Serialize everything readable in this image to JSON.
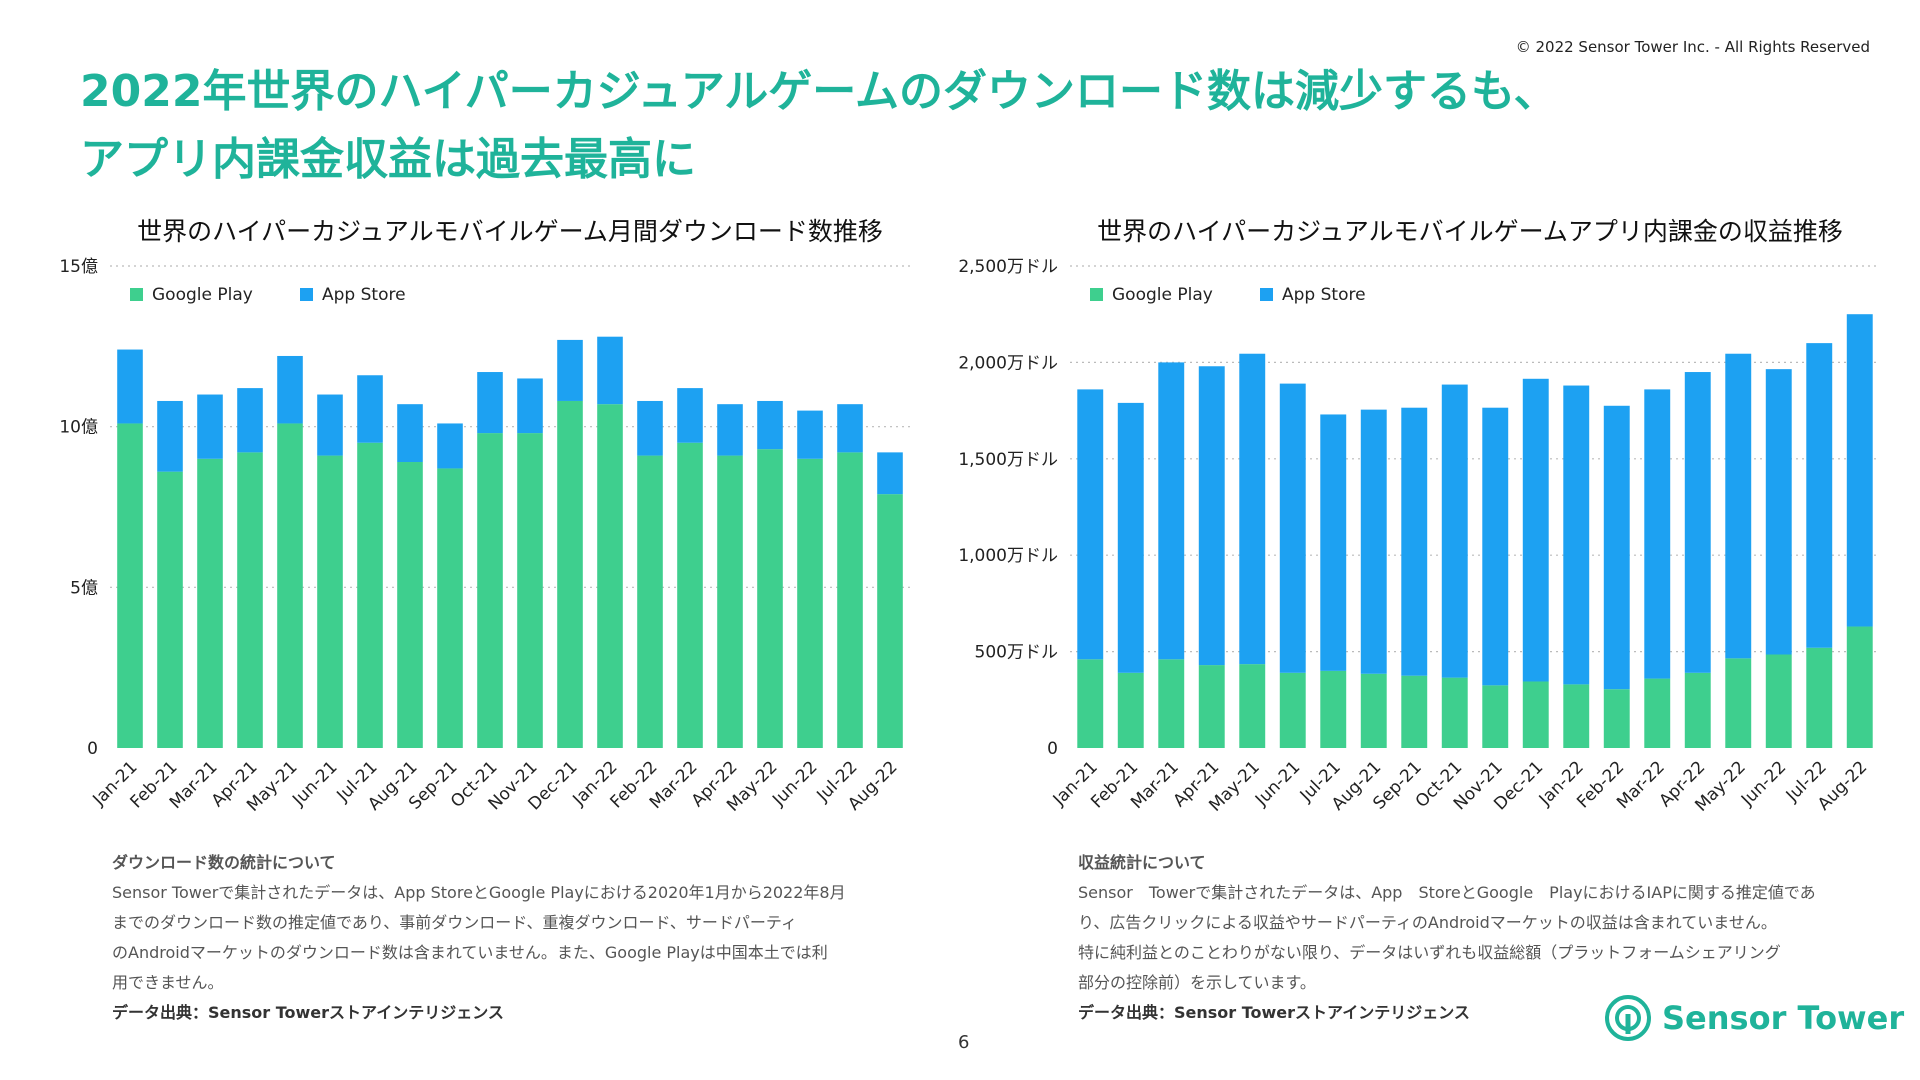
{
  "copyright": "© 2022 Sensor Tower Inc. - All Rights Reserved",
  "headline": {
    "line1": "2022年世界のハイパーカジュアルゲームのダウンロード数は減少するも、",
    "line2": "アプリ内課金収益は過去最高に"
  },
  "colors": {
    "google_play": "#3ecf8e",
    "app_store": "#1da1f2",
    "accent": "#1fb39a",
    "grid": "#bbbbbb"
  },
  "chart_data": [
    {
      "type": "bar",
      "stacked": true,
      "title": "世界のハイパーカジュアルモバイルゲーム月間ダウンロード数推移",
      "categories": [
        "Jan-21",
        "Feb-21",
        "Mar-21",
        "Apr-21",
        "May-21",
        "Jun-21",
        "Jul-21",
        "Aug-21",
        "Sep-21",
        "Oct-21",
        "Nov-21",
        "Dec-21",
        "Jan-22",
        "Feb-22",
        "Mar-22",
        "Apr-22",
        "May-22",
        "Jun-22",
        "Jul-22",
        "Aug-22"
      ],
      "series": [
        {
          "name": "Google Play",
          "color": "#3ecf8e",
          "values": [
            10.1,
            8.6,
            9.0,
            9.2,
            10.1,
            9.1,
            9.5,
            8.9,
            8.7,
            9.8,
            9.8,
            10.8,
            10.7,
            9.1,
            9.5,
            9.1,
            9.3,
            9.0,
            9.2,
            7.9
          ]
        },
        {
          "name": "App Store",
          "color": "#1da1f2",
          "values": [
            2.3,
            2.2,
            2.0,
            2.0,
            2.1,
            1.9,
            2.1,
            1.8,
            1.4,
            1.9,
            1.7,
            1.9,
            2.1,
            1.7,
            1.7,
            1.6,
            1.5,
            1.5,
            1.5,
            1.3
          ]
        }
      ],
      "ylim": [
        0,
        15
      ],
      "yticks": [
        0,
        5,
        10,
        15
      ],
      "ytick_labels": [
        "0",
        "5億",
        "10億",
        "15億"
      ],
      "grid": true,
      "legend": "top-left"
    },
    {
      "type": "bar",
      "stacked": true,
      "title": "世界のハイパーカジュアルモバイルゲームアプリ内課金の収益推移",
      "categories": [
        "Jan-21",
        "Feb-21",
        "Mar-21",
        "Apr-21",
        "May-21",
        "Jun-21",
        "Jul-21",
        "Aug-21",
        "Sep-21",
        "Oct-21",
        "Nov-21",
        "Dec-21",
        "Jan-22",
        "Feb-22",
        "Mar-22",
        "Apr-22",
        "May-22",
        "Jun-22",
        "Jul-22",
        "Aug-22"
      ],
      "series": [
        {
          "name": "Google Play",
          "color": "#3ecf8e",
          "values": [
            460,
            390,
            460,
            430,
            435,
            390,
            400,
            385,
            375,
            365,
            325,
            345,
            330,
            305,
            360,
            390,
            465,
            485,
            520,
            630
          ]
        },
        {
          "name": "App Store",
          "color": "#1da1f2",
          "values": [
            1400,
            1400,
            1540,
            1550,
            1610,
            1500,
            1330,
            1370,
            1390,
            1520,
            1440,
            1570,
            1550,
            1470,
            1500,
            1560,
            1580,
            1480,
            1580,
            1620
          ]
        }
      ],
      "ylim": [
        0,
        2500
      ],
      "yticks": [
        0,
        500,
        1000,
        1500,
        2000,
        2500
      ],
      "ytick_labels": [
        "0",
        "500万ドル",
        "1,000万ドル",
        "1,500万ドル",
        "2,000万ドル",
        "2,500万ドル"
      ],
      "grid": true,
      "legend": "top-left"
    }
  ],
  "notes": {
    "left": {
      "heading": "ダウンロード数の統計について",
      "body_lines": [
        "Sensor Towerで集計されたデータは、App StoreとGoogle Playにおける2020年1月から2022年8月",
        "までのダウンロード数の推定値であり、事前ダウンロード、重複ダウンロード、サードパーティ",
        "のAndroidマーケットのダウンロード数は含まれていません。また、Google Playは中国本土では利",
        "用できません。"
      ],
      "source": "データ出典：Sensor Towerストアインテリジェンス"
    },
    "right": {
      "heading": "収益統計について",
      "body_lines": [
        "Sensor　Towerで集計されたデータは、App　StoreとGoogle　PlayにおけるIAPに関する推定値であ",
        "り、広告クリックによる収益やサードパーティのAndroidマーケットの収益は含まれていません。",
        "特に純利益とのことわりがない限り、データはいずれも収益総額（プラットフォームシェアリング",
        "部分の控除前）を示しています。"
      ],
      "source": "データ出典：Sensor Towerストアインテリジェンス"
    }
  },
  "page_number": "6",
  "brand": {
    "name": "Sensor Tower",
    "icon": "sensor-tower-logo-icon"
  }
}
